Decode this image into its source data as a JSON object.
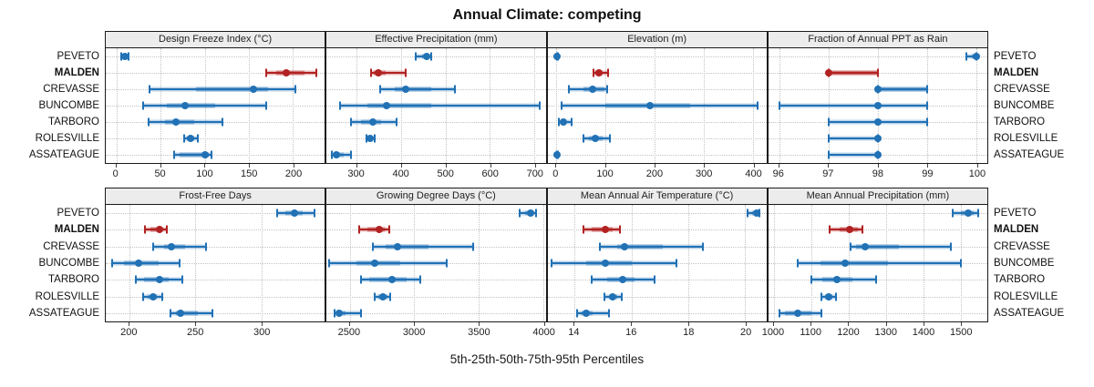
{
  "title": "Annual Climate: competing",
  "caption": "5th-25th-50th-75th-95th Percentiles",
  "sites": [
    "PEVETO",
    "MALDEN",
    "CREVASSE",
    "BUNCOMBE",
    "TARBORO",
    "ROLESVILLE",
    "ASSATEAGUE"
  ],
  "highlight_site": "MALDEN",
  "colors": {
    "series": "#2171B5",
    "highlight": "#B22222",
    "strip_bg": "#ECECEC",
    "grid": "#C3C3C3"
  },
  "chart_data": [
    {
      "type": "interval",
      "title": "Design Freeze Index (°C)",
      "percentiles": [
        5,
        25,
        50,
        75,
        95
      ],
      "domain": [
        -12,
        236
      ],
      "ticks": [
        0,
        50,
        100,
        150,
        200
      ],
      "series": [
        {
          "name": "PEVETO",
          "q": [
            6,
            8,
            10,
            12,
            14
          ]
        },
        {
          "name": "MALDEN",
          "q": [
            170,
            181,
            192,
            213,
            226
          ]
        },
        {
          "name": "CREVASSE",
          "q": [
            38,
            90,
            155,
            172,
            203
          ]
        },
        {
          "name": "BUNCOMBE",
          "q": [
            30,
            57,
            78,
            112,
            170
          ]
        },
        {
          "name": "TARBORO",
          "q": [
            37,
            55,
            67,
            88,
            120
          ]
        },
        {
          "name": "ROLESVILLE",
          "q": [
            77,
            80,
            84,
            88,
            92
          ]
        },
        {
          "name": "ASSATEAGUE",
          "q": [
            65,
            72,
            101,
            105,
            108
          ]
        }
      ]
    },
    {
      "type": "interval",
      "title": "Effective Precipitation (mm)",
      "percentiles": [
        5,
        25,
        50,
        75,
        95
      ],
      "domain": [
        232,
        726
      ],
      "ticks": [
        300,
        400,
        500,
        600,
        700
      ],
      "series": [
        {
          "name": "PEVETO",
          "q": [
            432,
            447,
            458,
            463,
            467
          ]
        },
        {
          "name": "MALDEN",
          "q": [
            333,
            338,
            348,
            365,
            411
          ]
        },
        {
          "name": "CREVASSE",
          "q": [
            352,
            386,
            410,
            468,
            522
          ]
        },
        {
          "name": "BUNCOMBE",
          "q": [
            262,
            325,
            367,
            467,
            712
          ]
        },
        {
          "name": "TARBORO",
          "q": [
            286,
            310,
            337,
            355,
            390
          ]
        },
        {
          "name": "ROLESVILLE",
          "q": [
            321,
            326,
            330,
            335,
            341
          ]
        },
        {
          "name": "ASSATEAGUE",
          "q": [
            243,
            247,
            255,
            270,
            288
          ]
        }
      ]
    },
    {
      "type": "interval",
      "title": "Elevation (m)",
      "percentiles": [
        5,
        25,
        50,
        75,
        95
      ],
      "domain": [
        -18,
        428
      ],
      "ticks": [
        0,
        100,
        200,
        300,
        400
      ],
      "series": [
        {
          "name": "PEVETO",
          "q": [
            1,
            1,
            2,
            3,
            4
          ]
        },
        {
          "name": "MALDEN",
          "q": [
            76,
            80,
            87,
            95,
            105
          ]
        },
        {
          "name": "CREVASSE",
          "q": [
            25,
            55,
            73,
            98,
            103
          ]
        },
        {
          "name": "BUNCOMBE",
          "q": [
            10,
            100,
            190,
            272,
            410
          ]
        },
        {
          "name": "TARBORO",
          "q": [
            5,
            9,
            15,
            21,
            32
          ]
        },
        {
          "name": "ROLESVILLE",
          "q": [
            55,
            66,
            80,
            94,
            110
          ]
        },
        {
          "name": "ASSATEAGUE",
          "q": [
            1,
            1,
            2,
            3,
            4
          ]
        }
      ]
    },
    {
      "type": "interval",
      "title": "Fraction of Annual PPT as Rain",
      "percentiles": [
        5,
        25,
        50,
        75,
        95
      ],
      "domain": [
        95.78,
        100.22
      ],
      "ticks": [
        96,
        97,
        98,
        99,
        100
      ],
      "series": [
        {
          "name": "PEVETO",
          "q": [
            99.8,
            99.9,
            100,
            100,
            100
          ]
        },
        {
          "name": "MALDEN",
          "q": [
            97,
            97,
            97,
            98,
            98
          ]
        },
        {
          "name": "CREVASSE",
          "q": [
            98,
            98,
            98,
            99,
            99
          ]
        },
        {
          "name": "BUNCOMBE",
          "q": [
            96,
            98,
            98,
            98,
            99
          ]
        },
        {
          "name": "TARBORO",
          "q": [
            97,
            98,
            98,
            98,
            99
          ]
        },
        {
          "name": "ROLESVILLE",
          "q": [
            97,
            98,
            98,
            98,
            98
          ]
        },
        {
          "name": "ASSATEAGUE",
          "q": [
            97,
            98,
            98,
            98,
            98
          ]
        }
      ]
    },
    {
      "type": "interval",
      "title": "Frost-Free Days",
      "percentiles": [
        5,
        25,
        50,
        75,
        95
      ],
      "domain": [
        182,
        348
      ],
      "ticks": [
        200,
        250,
        300
      ],
      "series": [
        {
          "name": "PEVETO",
          "q": [
            312,
            318,
            325,
            331,
            340
          ]
        },
        {
          "name": "MALDEN",
          "q": [
            212,
            216,
            223,
            225,
            228
          ]
        },
        {
          "name": "CREVASSE",
          "q": [
            218,
            226,
            232,
            242,
            258
          ]
        },
        {
          "name": "BUNCOMBE",
          "q": [
            187,
            196,
            207,
            222,
            238
          ]
        },
        {
          "name": "TARBORO",
          "q": [
            205,
            211,
            223,
            230,
            240
          ]
        },
        {
          "name": "ROLESVILLE",
          "q": [
            210,
            214,
            218,
            221,
            225
          ]
        },
        {
          "name": "ASSATEAGUE",
          "q": [
            231,
            235,
            239,
            252,
            263
          ]
        }
      ]
    },
    {
      "type": "interval",
      "title": "Growing Degree Days (°C)",
      "percentiles": [
        5,
        25,
        50,
        75,
        95
      ],
      "domain": [
        2320,
        4020
      ],
      "ticks": [
        2500,
        3000,
        3500,
        4000
      ],
      "series": [
        {
          "name": "PEVETO",
          "q": [
            3820,
            3860,
            3900,
            3925,
            3945
          ]
        },
        {
          "name": "MALDEN",
          "q": [
            2570,
            2640,
            2730,
            2770,
            2810
          ]
        },
        {
          "name": "CREVASSE",
          "q": [
            2680,
            2780,
            2870,
            3110,
            3460
          ]
        },
        {
          "name": "BUNCOMBE",
          "q": [
            2340,
            2550,
            2690,
            2890,
            3250
          ]
        },
        {
          "name": "TARBORO",
          "q": [
            2590,
            2650,
            2830,
            2940,
            3050
          ]
        },
        {
          "name": "ROLESVILLE",
          "q": [
            2690,
            2720,
            2760,
            2790,
            2815
          ]
        },
        {
          "name": "ASSATEAGUE",
          "q": [
            2380,
            2395,
            2420,
            2465,
            2590
          ]
        }
      ]
    },
    {
      "type": "interval",
      "title": "Mean Annual Air Temperature (°C)",
      "percentiles": [
        5,
        25,
        50,
        75,
        95
      ],
      "domain": [
        13.05,
        20.75
      ],
      "ticks": [
        14,
        16,
        18,
        20
      ],
      "series": [
        {
          "name": "PEVETO",
          "q": [
            20.1,
            20.25,
            20.4,
            20.45,
            20.5
          ]
        },
        {
          "name": "MALDEN",
          "q": [
            14.3,
            14.6,
            15.1,
            15.35,
            15.6
          ]
        },
        {
          "name": "CREVASSE",
          "q": [
            14.9,
            15.5,
            15.75,
            17.1,
            18.5
          ]
        },
        {
          "name": "BUNCOMBE",
          "q": [
            13.2,
            14.4,
            15.1,
            16.0,
            17.6
          ]
        },
        {
          "name": "TARBORO",
          "q": [
            14.6,
            15.15,
            15.7,
            16.1,
            16.8
          ]
        },
        {
          "name": "ROLESVILLE",
          "q": [
            15.05,
            15.2,
            15.35,
            15.5,
            15.65
          ]
        },
        {
          "name": "ASSATEAGUE",
          "q": [
            14.1,
            14.25,
            14.4,
            14.65,
            15.2
          ]
        }
      ]
    },
    {
      "type": "interval",
      "title": "Mean Annual Precipitation (mm)",
      "percentiles": [
        5,
        25,
        50,
        75,
        95
      ],
      "domain": [
        985,
        1572
      ],
      "ticks": [
        1000,
        1100,
        1200,
        1300,
        1400,
        1500
      ],
      "series": [
        {
          "name": "PEVETO",
          "q": [
            1480,
            1500,
            1520,
            1535,
            1548
          ]
        },
        {
          "name": "MALDEN",
          "q": [
            1150,
            1175,
            1203,
            1225,
            1237
          ]
        },
        {
          "name": "CREVASSE",
          "q": [
            1205,
            1220,
            1245,
            1335,
            1475
          ]
        },
        {
          "name": "BUNCOMBE",
          "q": [
            1065,
            1125,
            1190,
            1305,
            1500
          ]
        },
        {
          "name": "TARBORO",
          "q": [
            1100,
            1130,
            1170,
            1210,
            1275
          ]
        },
        {
          "name": "ROLESVILLE",
          "q": [
            1128,
            1138,
            1146,
            1157,
            1167
          ]
        },
        {
          "name": "ASSATEAGUE",
          "q": [
            1015,
            1030,
            1065,
            1100,
            1127
          ]
        }
      ]
    }
  ]
}
